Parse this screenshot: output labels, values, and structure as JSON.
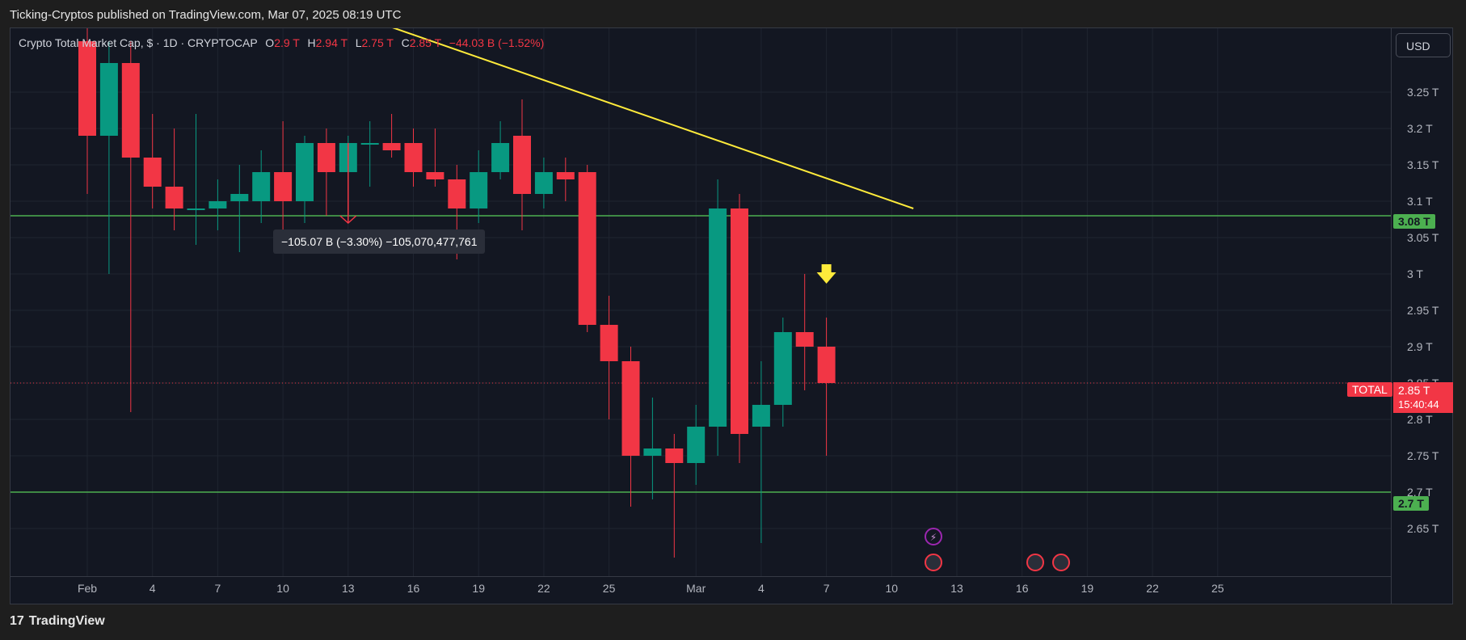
{
  "header": {
    "publisher_text": "Ticking-Cryptos published on TradingView.com, Mar 07, 2025 08:19 UTC"
  },
  "legend": {
    "symbol": "Crypto Total Market Cap, $ · 1D · CRYPTOCAP",
    "open_label": "O",
    "open_value": "2.9 T",
    "high_label": "H",
    "high_value": "2.94 T",
    "low_label": "L",
    "low_value": "2.75 T",
    "close_label": "C",
    "close_value": "2.85 T",
    "change": "−44.03 B (−1.52%)"
  },
  "currency_button": "USD",
  "measure_tooltip": "−105.07 B (−3.30%) −105,070,477,761",
  "price_tags": {
    "upper_level": "3.08 T",
    "lower_level": "2.7 T",
    "current_symbol": "TOTAL",
    "current_price": "2.85 T",
    "countdown": "15:40:44"
  },
  "footer": {
    "brand": "TradingView",
    "logo_glyph": "17"
  },
  "colors": {
    "up": "#089981",
    "down": "#f23645",
    "level_line": "#4caf50",
    "trendline": "#ffeb3b",
    "background": "#131722"
  },
  "icons": [
    "lightning-event-icon",
    "us-flag-event-icon",
    "down-arrow-annotation-icon"
  ],
  "chart_data": {
    "type": "candlestick",
    "title": "Crypto Total Market Cap, $ · 1D · CRYPTOCAP",
    "ylim": [
      2.6,
      3.32
    ],
    "y_ticks": [
      "2.65 T",
      "2.7 T",
      "2.75 T",
      "2.8 T",
      "2.85 T",
      "2.9 T",
      "2.95 T",
      "3 T",
      "3.05 T",
      "3.1 T",
      "3.15 T",
      "3.2 T",
      "3.25 T"
    ],
    "y_tick_values": [
      2.65,
      2.7,
      2.75,
      2.8,
      2.85,
      2.9,
      2.95,
      3.0,
      3.05,
      3.1,
      3.15,
      3.2,
      3.25
    ],
    "x_tick_labels": [
      "Feb",
      "4",
      "7",
      "10",
      "13",
      "16",
      "19",
      "22",
      "25",
      "Mar",
      "4",
      "7",
      "10",
      "13",
      "16",
      "19",
      "22",
      "25"
    ],
    "x_tick_dates": [
      "2025-02-01",
      "2025-02-04",
      "2025-02-07",
      "2025-02-10",
      "2025-02-13",
      "2025-02-16",
      "2025-02-19",
      "2025-02-22",
      "2025-02-25",
      "2025-03-01",
      "2025-03-04",
      "2025-03-07",
      "2025-03-10",
      "2025-03-13",
      "2025-03-16",
      "2025-03-19",
      "2025-03-22",
      "2025-03-25"
    ],
    "candles": [
      {
        "date": "2025-02-01",
        "open": 3.32,
        "high": 3.35,
        "low": 3.11,
        "close": 3.19
      },
      {
        "date": "2025-02-02",
        "open": 3.19,
        "high": 3.32,
        "low": 3.0,
        "close": 3.29
      },
      {
        "date": "2025-02-03",
        "open": 3.29,
        "high": 3.32,
        "low": 2.81,
        "close": 3.16
      },
      {
        "date": "2025-02-04",
        "open": 3.16,
        "high": 3.22,
        "low": 3.09,
        "close": 3.12
      },
      {
        "date": "2025-02-05",
        "open": 3.12,
        "high": 3.2,
        "low": 3.06,
        "close": 3.09
      },
      {
        "date": "2025-02-06",
        "open": 3.09,
        "high": 3.22,
        "low": 3.04,
        "close": 3.09
      },
      {
        "date": "2025-02-07",
        "open": 3.09,
        "high": 3.13,
        "low": 3.06,
        "close": 3.1
      },
      {
        "date": "2025-02-08",
        "open": 3.1,
        "high": 3.15,
        "low": 3.03,
        "close": 3.11
      },
      {
        "date": "2025-02-09",
        "open": 3.1,
        "high": 3.17,
        "low": 3.07,
        "close": 3.14
      },
      {
        "date": "2025-02-10",
        "open": 3.14,
        "high": 3.21,
        "low": 3.06,
        "close": 3.1
      },
      {
        "date": "2025-02-11",
        "open": 3.1,
        "high": 3.19,
        "low": 3.07,
        "close": 3.18
      },
      {
        "date": "2025-02-12",
        "open": 3.18,
        "high": 3.2,
        "low": 3.08,
        "close": 3.14
      },
      {
        "date": "2025-02-13",
        "open": 3.14,
        "high": 3.19,
        "low": 3.08,
        "close": 3.18
      },
      {
        "date": "2025-02-14",
        "open": 3.18,
        "high": 3.21,
        "low": 3.12,
        "close": 3.18
      },
      {
        "date": "2025-02-15",
        "open": 3.18,
        "high": 3.22,
        "low": 3.16,
        "close": 3.17
      },
      {
        "date": "2025-02-16",
        "open": 3.18,
        "high": 3.2,
        "low": 3.12,
        "close": 3.14
      },
      {
        "date": "2025-02-17",
        "open": 3.14,
        "high": 3.2,
        "low": 3.12,
        "close": 3.13
      },
      {
        "date": "2025-02-18",
        "open": 3.13,
        "high": 3.15,
        "low": 3.02,
        "close": 3.09
      },
      {
        "date": "2025-02-19",
        "open": 3.09,
        "high": 3.17,
        "low": 3.07,
        "close": 3.14
      },
      {
        "date": "2025-02-20",
        "open": 3.14,
        "high": 3.21,
        "low": 3.13,
        "close": 3.18
      },
      {
        "date": "2025-02-21",
        "open": 3.19,
        "high": 3.24,
        "low": 3.06,
        "close": 3.11
      },
      {
        "date": "2025-02-22",
        "open": 3.11,
        "high": 3.16,
        "low": 3.09,
        "close": 3.14
      },
      {
        "date": "2025-02-23",
        "open": 3.14,
        "high": 3.16,
        "low": 3.1,
        "close": 3.13
      },
      {
        "date": "2025-02-24",
        "open": 3.14,
        "high": 3.15,
        "low": 2.92,
        "close": 2.93
      },
      {
        "date": "2025-02-25",
        "open": 2.93,
        "high": 2.97,
        "low": 2.8,
        "close": 2.88
      },
      {
        "date": "2025-02-26",
        "open": 2.88,
        "high": 2.9,
        "low": 2.68,
        "close": 2.75
      },
      {
        "date": "2025-02-27",
        "open": 2.75,
        "high": 2.83,
        "low": 2.69,
        "close": 2.76
      },
      {
        "date": "2025-02-28",
        "open": 2.76,
        "high": 2.78,
        "low": 2.61,
        "close": 2.74
      },
      {
        "date": "2025-03-01",
        "open": 2.74,
        "high": 2.82,
        "low": 2.71,
        "close": 2.79
      },
      {
        "date": "2025-03-02",
        "open": 2.79,
        "high": 3.13,
        "low": 2.75,
        "close": 3.09
      },
      {
        "date": "2025-03-03",
        "open": 3.09,
        "high": 3.11,
        "low": 2.74,
        "close": 2.78
      },
      {
        "date": "2025-03-04",
        "open": 2.79,
        "high": 2.88,
        "low": 2.63,
        "close": 2.82
      },
      {
        "date": "2025-03-05",
        "open": 2.82,
        "high": 2.94,
        "low": 2.79,
        "close": 2.92
      },
      {
        "date": "2025-03-06",
        "open": 2.92,
        "high": 3.0,
        "low": 2.84,
        "close": 2.9
      },
      {
        "date": "2025-03-07",
        "open": 2.9,
        "high": 2.94,
        "low": 2.75,
        "close": 2.85
      }
    ],
    "horizontal_levels": [
      3.08,
      2.7
    ],
    "trendline": {
      "from": {
        "date": "2025-02-13",
        "value": 3.36
      },
      "to": {
        "date": "2025-03-11",
        "value": 3.09
      }
    },
    "current_price": 2.85
  }
}
